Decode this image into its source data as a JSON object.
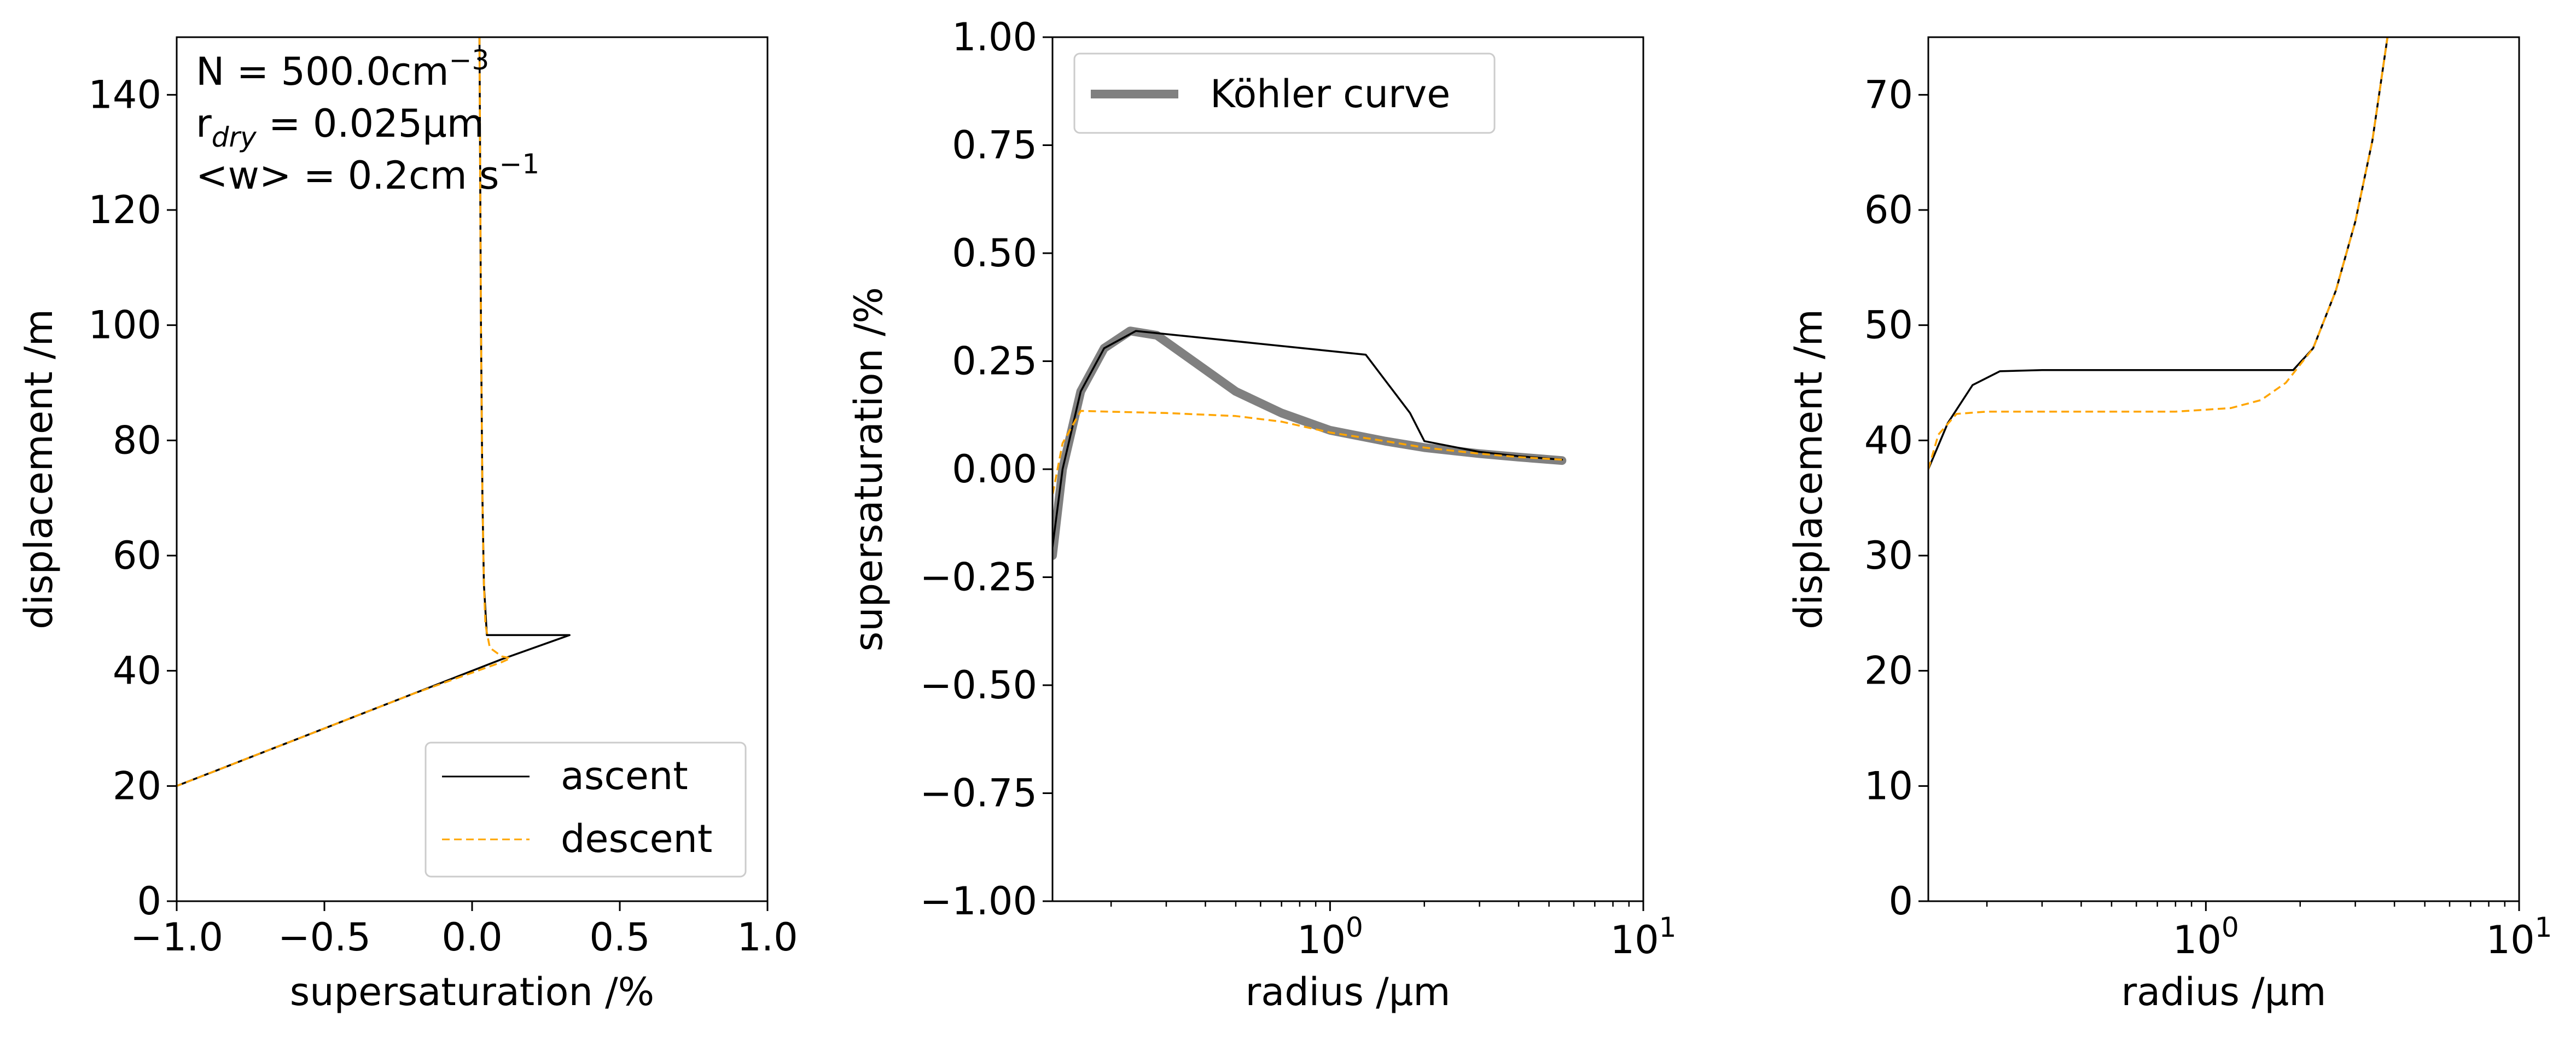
{
  "figure": {
    "annotation": {
      "line1": "N = 500.0cm",
      "line1_sup": "−3",
      "line2_r": "r",
      "line2_sub": "dry",
      "line2_rest": " = 0.025μm",
      "line3": "<w> = 0.2cm s",
      "line3_sup": "−1"
    }
  },
  "chart_data": [
    {
      "type": "line",
      "panel": "left",
      "xlabel": "supersaturation /%",
      "ylabel": "displacement /m",
      "xlim": [
        -1.0,
        1.0
      ],
      "ylim": [
        0,
        150
      ],
      "x_ticks": [
        "−1.0",
        "−0.5",
        "0.0",
        "0.5",
        "1.0"
      ],
      "y_ticks": [
        "0",
        "20",
        "40",
        "60",
        "80",
        "100",
        "120",
        "140"
      ],
      "legend": {
        "placement": "lower-right",
        "entries": [
          "ascent",
          "descent"
        ]
      },
      "series": [
        {
          "name": "ascent",
          "color": "#000000",
          "style": "solid",
          "points": [
            [
              -1.0,
              20
            ],
            [
              -0.6,
              28
            ],
            [
              -0.2,
              36
            ],
            [
              0.1,
              42
            ],
            [
              0.33,
              46.2
            ],
            [
              0.05,
              46.2
            ],
            [
              0.04,
              55
            ],
            [
              0.035,
              70
            ],
            [
              0.03,
              100
            ],
            [
              0.025,
              150
            ]
          ]
        },
        {
          "name": "descent",
          "color": "#FFA500",
          "style": "dashed",
          "points": [
            [
              0.025,
              150
            ],
            [
              0.03,
              100
            ],
            [
              0.035,
              70
            ],
            [
              0.04,
              55
            ],
            [
              0.045,
              48
            ],
            [
              0.06,
              44
            ],
            [
              0.1,
              42.5
            ],
            [
              0.13,
              42.2
            ],
            [
              0.1,
              41.5
            ],
            [
              -0.2,
              36
            ],
            [
              -0.6,
              28
            ],
            [
              -1.0,
              20
            ]
          ]
        }
      ]
    },
    {
      "type": "line",
      "panel": "middle",
      "xlabel": "radius /μm",
      "ylabel": "supersaturation /%",
      "xscale": "log",
      "xlim": [
        0.13,
        10
      ],
      "ylim": [
        -1.0,
        1.0
      ],
      "x_ticks": [
        "10^0",
        "10^1"
      ],
      "y_ticks": [
        "−1.00",
        "−0.75",
        "−0.50",
        "−0.25",
        "0.00",
        "0.25",
        "0.50",
        "0.75",
        "1.00"
      ],
      "legend": {
        "placement": "upper-left",
        "entries": [
          "Köhler curve"
        ]
      },
      "series": [
        {
          "name": "Köhler curve",
          "color": "#808080",
          "style": "solid-thick",
          "points": [
            [
              0.13,
              -0.2
            ],
            [
              0.14,
              0.0
            ],
            [
              0.16,
              0.18
            ],
            [
              0.19,
              0.28
            ],
            [
              0.23,
              0.32
            ],
            [
              0.28,
              0.31
            ],
            [
              0.35,
              0.26
            ],
            [
              0.5,
              0.18
            ],
            [
              0.7,
              0.13
            ],
            [
              1.0,
              0.09
            ],
            [
              1.5,
              0.065
            ],
            [
              2.0,
              0.05
            ],
            [
              3.0,
              0.036
            ],
            [
              4.0,
              0.028
            ],
            [
              5.5,
              0.02
            ]
          ]
        },
        {
          "color": "#000000",
          "style": "solid",
          "points": [
            [
              0.13,
              -0.18
            ],
            [
              0.14,
              0.0
            ],
            [
              0.16,
              0.18
            ],
            [
              0.19,
              0.28
            ],
            [
              0.24,
              0.32
            ],
            [
              1.3,
              0.265
            ],
            [
              1.8,
              0.13
            ],
            [
              2.0,
              0.065
            ],
            [
              3.0,
              0.04
            ],
            [
              4.0,
              0.03
            ],
            [
              5.5,
              0.022
            ]
          ]
        },
        {
          "color": "#FFA500",
          "style": "dashed",
          "points": [
            [
              5.5,
              0.022
            ],
            [
              4.0,
              0.028
            ],
            [
              3.0,
              0.036
            ],
            [
              2.0,
              0.05
            ],
            [
              1.5,
              0.065
            ],
            [
              1.0,
              0.085
            ],
            [
              0.7,
              0.11
            ],
            [
              0.5,
              0.123
            ],
            [
              0.3,
              0.13
            ],
            [
              0.2,
              0.133
            ],
            [
              0.16,
              0.135
            ],
            [
              0.14,
              0.06
            ],
            [
              0.13,
              -0.06
            ]
          ]
        }
      ]
    },
    {
      "type": "line",
      "panel": "right",
      "xlabel": "radius /μm",
      "ylabel": "displacement /m",
      "xscale": "log",
      "xlim": [
        0.13,
        10
      ],
      "ylim": [
        0,
        75
      ],
      "x_ticks": [
        "10^0",
        "10^1"
      ],
      "y_ticks": [
        "0",
        "10",
        "20",
        "30",
        "40",
        "50",
        "60",
        "70"
      ],
      "series": [
        {
          "color": "#000000",
          "style": "solid",
          "points": [
            [
              0.13,
              37.5
            ],
            [
              0.15,
              41.5
            ],
            [
              0.18,
              44.8
            ],
            [
              0.22,
              46
            ],
            [
              0.3,
              46.1
            ],
            [
              1.9,
              46.1
            ],
            [
              2.2,
              48
            ],
            [
              2.6,
              53
            ],
            [
              3.0,
              59
            ],
            [
              3.4,
              66
            ],
            [
              3.8,
              75
            ]
          ]
        },
        {
          "color": "#FFA500",
          "style": "dashed",
          "points": [
            [
              0.13,
              37.5
            ],
            [
              0.14,
              40.5
            ],
            [
              0.16,
              42.3
            ],
            [
              0.2,
              42.5
            ],
            [
              0.8,
              42.5
            ],
            [
              1.2,
              42.8
            ],
            [
              1.5,
              43.5
            ],
            [
              1.8,
              45
            ],
            [
              2.2,
              48
            ],
            [
              2.6,
              53
            ],
            [
              3.0,
              59
            ],
            [
              3.4,
              66
            ],
            [
              3.8,
              75
            ]
          ]
        }
      ]
    }
  ]
}
